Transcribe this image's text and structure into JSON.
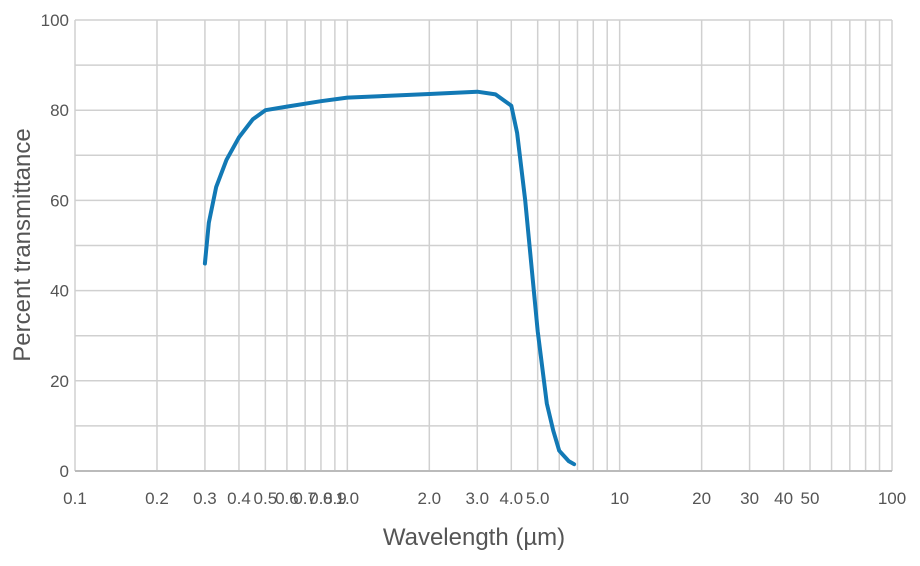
{
  "chart_data": {
    "type": "line",
    "x_label": "Wavelength (µm)",
    "y_label": "Percent transmittance",
    "log_x": true,
    "grid": true,
    "xlim": [
      0.1,
      100
    ],
    "ylim": [
      0,
      100
    ],
    "xticks": [
      0.1,
      0.2,
      0.3,
      0.4,
      0.5,
      0.6,
      0.7,
      0.8,
      0.9,
      {
        "value": 1,
        "label": "1.0"
      },
      {
        "value": 2,
        "label": "2.0"
      },
      {
        "value": 3,
        "label": "3.0"
      },
      {
        "value": 4,
        "label": "4.0"
      },
      {
        "value": 5,
        "label": "5.0"
      },
      10,
      20,
      30,
      40,
      50,
      100
    ],
    "x_minor_gridlines": [
      6,
      7,
      8,
      9,
      60,
      70,
      80,
      90
    ],
    "yticks": [
      0,
      20,
      40,
      60,
      80,
      100
    ],
    "y_minor_gridlines": [
      10,
      30,
      50,
      70,
      90
    ],
    "series": [
      {
        "color": "#1279b5",
        "x": [
          0.3,
          0.31,
          0.33,
          0.36,
          0.4,
          0.45,
          0.5,
          0.6,
          0.8,
          1.0,
          2.0,
          3.0,
          3.5,
          4.0,
          4.2,
          4.5,
          5.0,
          5.4,
          5.7,
          6.0,
          6.5,
          6.8
        ],
        "values": [
          46,
          55,
          63,
          69,
          74,
          78,
          80,
          80.8,
          82,
          82.8,
          83.6,
          84.1,
          83.5,
          81,
          75,
          60,
          31,
          15,
          9,
          4.5,
          2.2,
          1.5
        ]
      }
    ]
  }
}
